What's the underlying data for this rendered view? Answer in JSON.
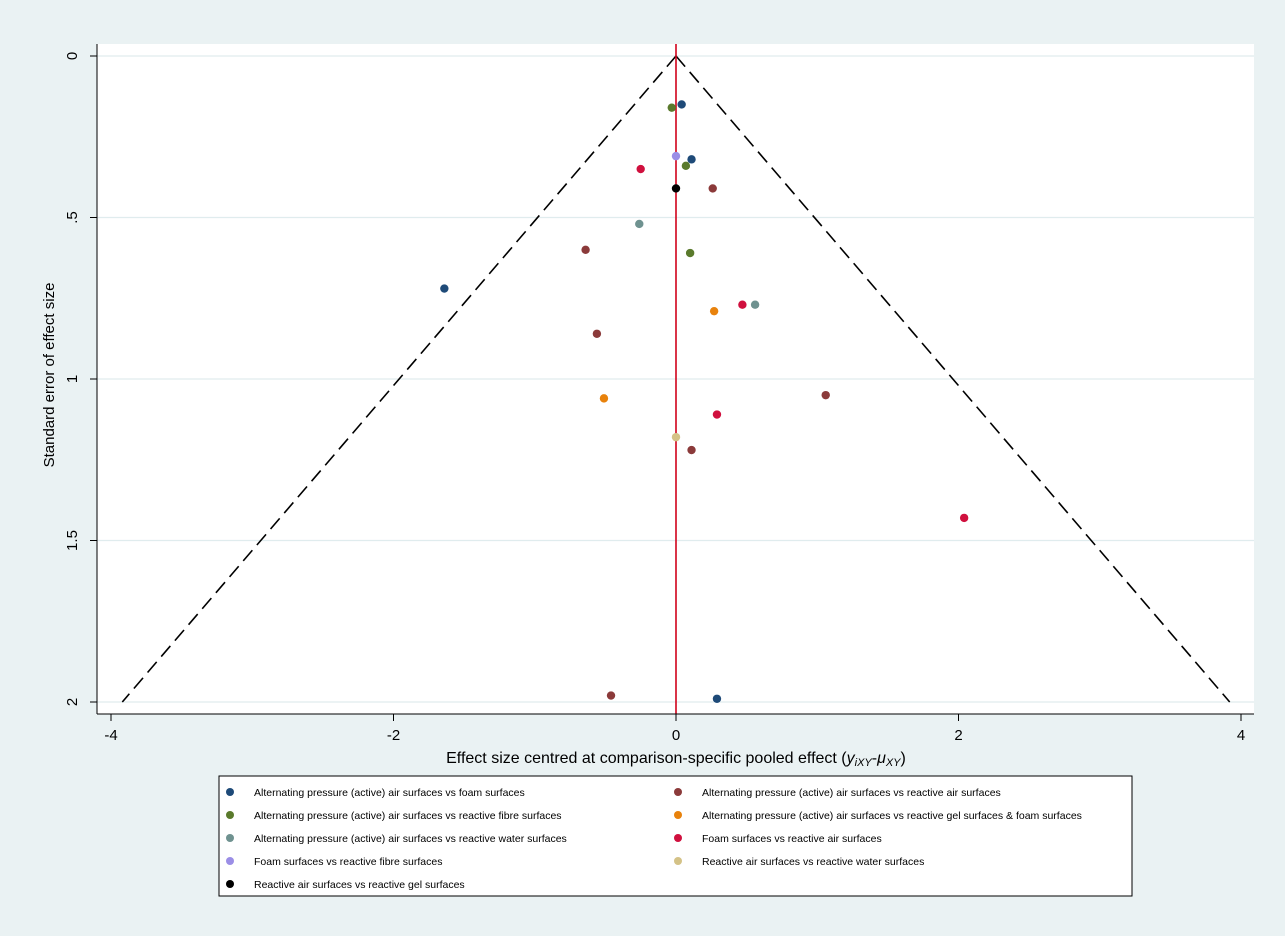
{
  "chart_data": {
    "type": "scatter",
    "title": "",
    "xlabel_main": "Effect size centred at comparison-specific pooled effect (",
    "xlabel_math_y": "y",
    "xlabel_math_y_sub": "iXY",
    "xlabel_math_sep": "-",
    "xlabel_math_mu": "μ",
    "xlabel_math_mu_sub": "XY",
    "xlabel_close": ")",
    "ylabel": "Standard error of effect size",
    "xlim": [
      -4,
      4
    ],
    "ylim": [
      0,
      2
    ],
    "y_reversed": true,
    "x_ticks": [
      "-4",
      "-2",
      "0",
      "2",
      "4"
    ],
    "y_ticks": [
      "0",
      ".5",
      "1",
      "1.5",
      "2"
    ],
    "grid": "horizontal",
    "colors": {
      "background": "#eaf2f3",
      "plot_bg": "#ffffff",
      "grid": "#e0ecee",
      "reference_line": "#d0021b",
      "funnel": "#000000"
    },
    "funnel_limits": {
      "apex": [
        0,
        0
      ],
      "bottom_left": [
        -3.92,
        2
      ],
      "bottom_right": [
        3.92,
        2
      ]
    },
    "reference_line_x": 0,
    "legend_position": "bottom",
    "series": [
      {
        "name": "Alternating pressure (active) air surfaces vs foam surfaces",
        "color": "#1e4a78",
        "points": [
          [
            0.04,
            0.15
          ],
          [
            0.11,
            0.32
          ],
          [
            -1.64,
            0.72
          ],
          [
            0.29,
            1.99
          ]
        ]
      },
      {
        "name": "Alternating pressure (active) air surfaces vs reactive air surfaces",
        "color": "#8b3a3a",
        "points": [
          [
            0.26,
            0.41
          ],
          [
            -0.64,
            0.6
          ],
          [
            -0.56,
            0.86
          ],
          [
            1.06,
            1.05
          ],
          [
            0.11,
            1.22
          ],
          [
            -0.46,
            1.98
          ]
        ]
      },
      {
        "name": "Alternating pressure (active) air surfaces vs reactive fibre surfaces",
        "color": "#5a7a2c",
        "points": [
          [
            -0.03,
            0.16
          ],
          [
            0.07,
            0.34
          ],
          [
            0.1,
            0.61
          ]
        ]
      },
      {
        "name": "Alternating pressure (active) air surfaces vs reactive gel surfaces & foam surfaces",
        "color": "#e8820c",
        "points": [
          [
            0.27,
            0.79
          ],
          [
            -0.51,
            1.06
          ]
        ]
      },
      {
        "name": "Alternating pressure (active) air surfaces vs reactive water surfaces",
        "color": "#6f9290",
        "points": [
          [
            -0.26,
            0.52
          ],
          [
            0.56,
            0.77
          ]
        ]
      },
      {
        "name": "Foam surfaces vs reactive air surfaces",
        "color": "#d0103e",
        "points": [
          [
            -0.25,
            0.35
          ],
          [
            0.47,
            0.77
          ],
          [
            0.29,
            1.11
          ],
          [
            2.04,
            1.43
          ]
        ]
      },
      {
        "name": "Foam surfaces vs reactive fibre surfaces",
        "color": "#9b8ee6",
        "points": [
          [
            0.0,
            0.31
          ]
        ]
      },
      {
        "name": "Reactive air surfaces vs reactive water surfaces",
        "color": "#d4c287",
        "points": [
          [
            0.0,
            1.18
          ]
        ]
      },
      {
        "name": "Reactive air surfaces vs reactive gel surfaces",
        "color": "#000000",
        "points": [
          [
            0.0,
            0.41
          ]
        ]
      }
    ]
  }
}
